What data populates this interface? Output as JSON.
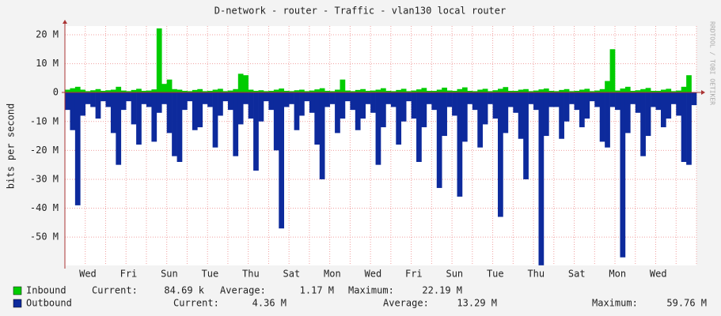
{
  "chart_data": {
    "type": "area-bars",
    "title": "D-network - router - Traffic - vlan130 local router",
    "y_label": "bits per second",
    "watermark": "RRDTOOL / TOBI OETIKER",
    "ylim": [
      -59.8,
      23
    ],
    "yticks": [
      {
        "value": -50,
        "label": "-50 M"
      },
      {
        "value": -40,
        "label": "-40 M"
      },
      {
        "value": -30,
        "label": "-30 M"
      },
      {
        "value": -20,
        "label": "-20 M"
      },
      {
        "value": -10,
        "label": "-10 M"
      },
      0,
      {
        "value": 10,
        "label": "10 M"
      },
      {
        "value": 20,
        "label": "20 M"
      }
    ],
    "grid": true,
    "categories": [
      null,
      null,
      null,
      null,
      "Wed",
      null,
      null,
      null,
      null,
      null,
      null,
      null,
      "Fri",
      null,
      null,
      null,
      null,
      null,
      null,
      null,
      "Sun",
      null,
      null,
      null,
      null,
      null,
      null,
      null,
      "Tue",
      null,
      null,
      null,
      null,
      null,
      null,
      null,
      "Thu",
      null,
      null,
      null,
      null,
      null,
      null,
      null,
      "Sat",
      null,
      null,
      null,
      null,
      null,
      null,
      null,
      "Mon",
      null,
      null,
      null,
      null,
      null,
      null,
      null,
      "Wed",
      null,
      null,
      null,
      null,
      null,
      null,
      null,
      "Fri",
      null,
      null,
      null,
      null,
      null,
      null,
      null,
      "Sun",
      null,
      null,
      null,
      null,
      null,
      null,
      null,
      "Tue",
      null,
      null,
      null,
      null,
      null,
      null,
      null,
      "Thu",
      null,
      null,
      null,
      null,
      null,
      null,
      null,
      "Sat",
      null,
      null,
      null,
      null,
      null,
      null,
      null,
      "Mon",
      null,
      null,
      null,
      null,
      null,
      null,
      null,
      "Wed",
      null,
      null,
      null,
      null,
      null,
      null,
      null
    ],
    "series": [
      {
        "name": "Inbound",
        "color": "#00cc00",
        "stats": [
          {
            "label": "Current:",
            "value": "84.69 k"
          },
          {
            "label": "Average:",
            "value": "1.17 M"
          },
          {
            "label": "Maximum:",
            "value": "22.19 M"
          }
        ],
        "values": [
          1,
          1.5,
          2,
          1,
          0.5,
          0.8,
          1.2,
          0.6,
          0.8,
          1,
          2,
          0.7,
          0.5,
          0.9,
          1.3,
          0.6,
          0.7,
          1.1,
          22.19,
          3,
          4.5,
          1.2,
          1,
          0.6,
          0.5,
          0.9,
          1.2,
          0.5,
          0.6,
          1,
          1.3,
          0.5,
          0.7,
          1.2,
          6.5,
          6,
          1,
          0.6,
          0.8,
          0.5,
          0.6,
          1,
          1.4,
          0.6,
          0.5,
          0.8,
          1,
          0.5,
          0.7,
          1.1,
          1.5,
          0.6,
          0.5,
          1,
          4.5,
          0.7,
          0.5,
          0.9,
          1.2,
          0.6,
          0.7,
          1,
          1.5,
          0.6,
          0.5,
          0.9,
          1.3,
          0.5,
          0.7,
          1.1,
          1.6,
          0.6,
          0.6,
          1,
          1.7,
          0.7,
          0.6,
          1.2,
          1.8,
          0.6,
          0.5,
          1,
          1.3,
          0.5,
          0.8,
          1.3,
          1.9,
          0.6,
          0.6,
          1,
          1.2,
          0.5,
          0.7,
          1.1,
          1.4,
          0.6,
          0.5,
          0.9,
          1.2,
          0.5,
          0.6,
          1,
          1.3,
          0.5,
          0.7,
          1.2,
          4,
          15,
          0.7,
          1.4,
          2,
          0.6,
          0.8,
          1.2,
          1.6,
          0.6,
          0.6,
          1,
          1.3,
          0.5,
          0.7,
          2,
          6,
          0.08
        ]
      },
      {
        "name": "Outbound",
        "color": "#0d2a9c",
        "stats": [
          {
            "label": "Current:",
            "value": "4.36 M"
          },
          {
            "label": "Average:",
            "value": "13.29 M"
          },
          {
            "label": "Maximum:",
            "value": "59.76 M"
          }
        ],
        "values": [
          -6,
          -13,
          -39,
          -8,
          -4,
          -5,
          -9,
          -3,
          -5,
          -14,
          -25,
          -6,
          -3,
          -11,
          -18,
          -4,
          -5,
          -17,
          -7,
          -4,
          -14,
          -22,
          -24,
          -6,
          -3,
          -13,
          -12,
          -4,
          -5,
          -19,
          -8,
          -3,
          -6,
          -22,
          -11,
          -4,
          -9,
          -27,
          -10,
          -3,
          -6,
          -20,
          -47,
          -5,
          -4,
          -13,
          -8,
          -3,
          -7,
          -18,
          -30,
          -5,
          -4,
          -14,
          -9,
          -3,
          -6,
          -13,
          -9,
          -4,
          -7,
          -25,
          -12,
          -4,
          -5,
          -18,
          -10,
          -3,
          -9,
          -24,
          -12,
          -4,
          -6,
          -33,
          -15,
          -5,
          -8,
          -36,
          -17,
          -4,
          -6,
          -19,
          -11,
          -4,
          -9,
          -43,
          -14,
          -5,
          -7,
          -16,
          -30,
          -4,
          -6,
          -59.76,
          -15,
          -5,
          -5,
          -16,
          -10,
          -4,
          -6,
          -12,
          -9,
          -3,
          -5,
          -17,
          -19,
          -5,
          -6,
          -57,
          -14,
          -4,
          -7,
          -22,
          -15,
          -5,
          -6,
          -12,
          -9,
          -4,
          -8,
          -24,
          -25,
          -4.36
        ]
      }
    ]
  }
}
